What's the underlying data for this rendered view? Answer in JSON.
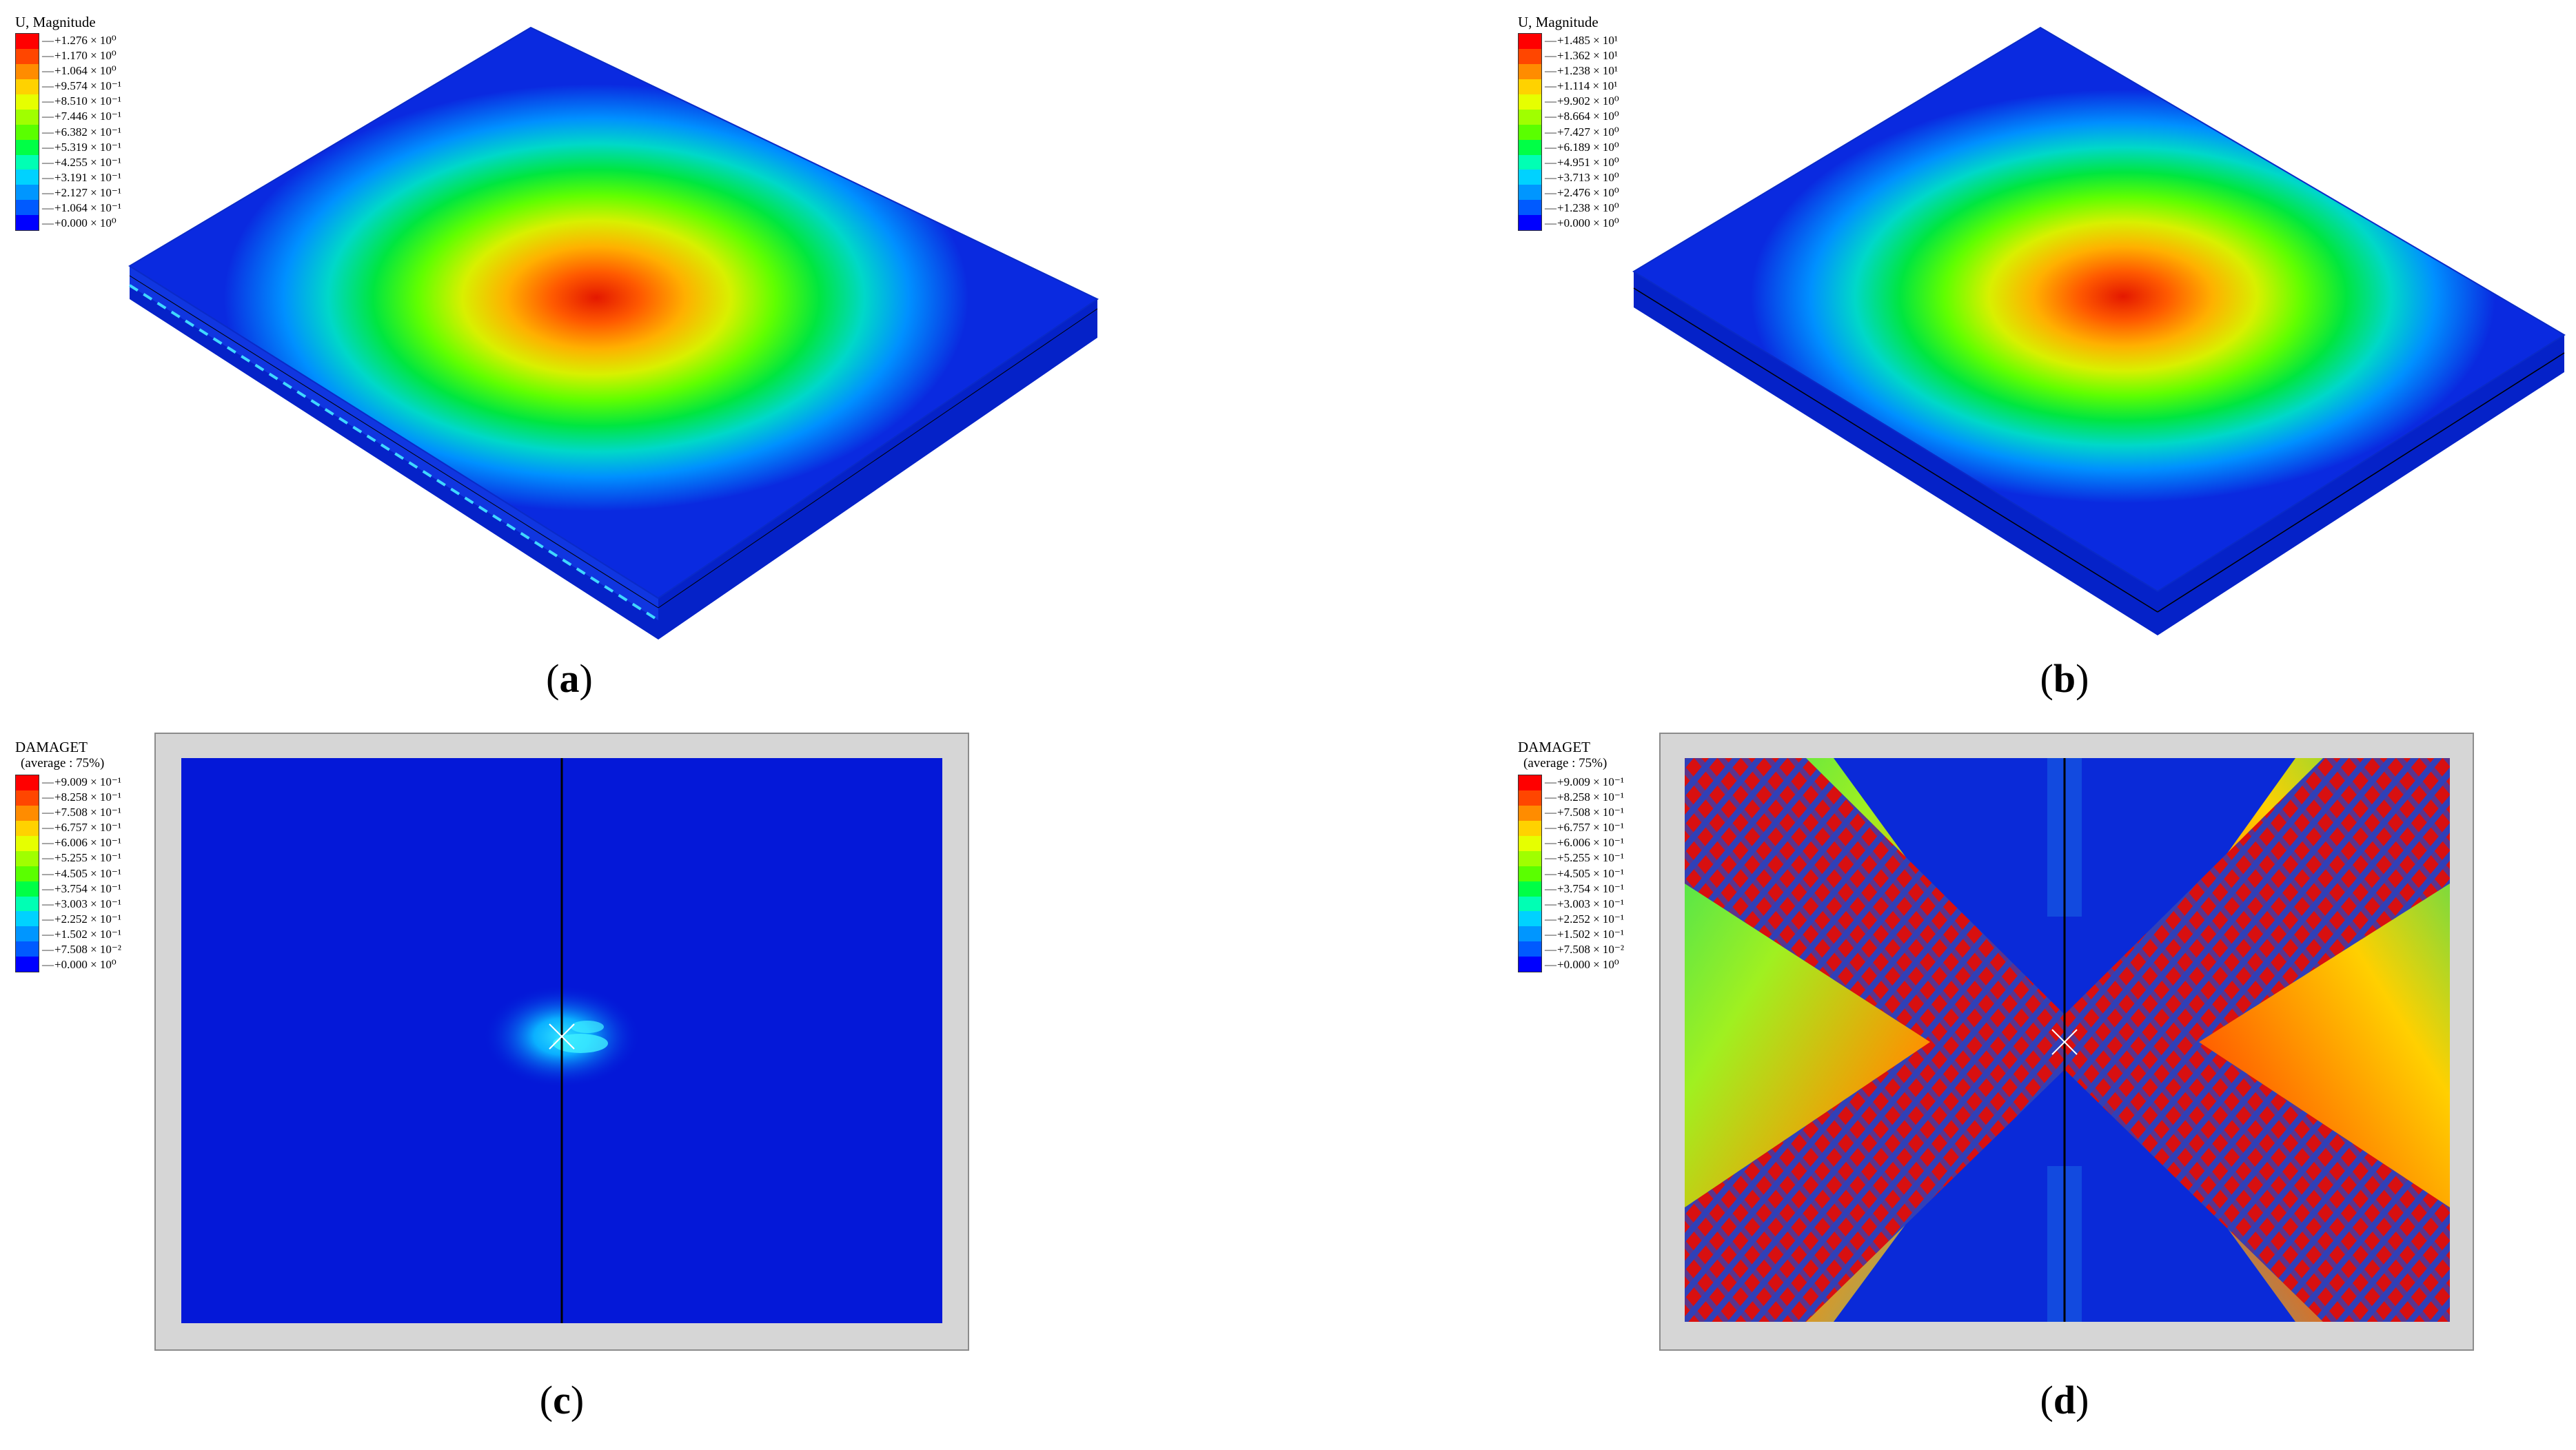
{
  "panels": [
    {
      "id": "a",
      "caption_letter": "a",
      "legend_title": "U, Magnitude",
      "legend_subtitle": "",
      "legend_values": [
        "+1.276 × 10⁰",
        "+1.170 × 10⁰",
        "+1.064 × 10⁰",
        "+9.574 × 10⁻¹",
        "+8.510 × 10⁻¹",
        "+7.446 × 10⁻¹",
        "+6.382 × 10⁻¹",
        "+5.319 × 10⁻¹",
        "+4.255 × 10⁻¹",
        "+3.191 × 10⁻¹",
        "+2.127 × 10⁻¹",
        "+1.064 × 10⁻¹",
        "+0.000 × 10⁰"
      ]
    },
    {
      "id": "b",
      "caption_letter": "b",
      "legend_title": "U, Magnitude",
      "legend_subtitle": "",
      "legend_values": [
        "+1.485 × 10¹",
        "+1.362 × 10¹",
        "+1.238 × 10¹",
        "+1.114 × 10¹",
        "+9.902 × 10⁰",
        "+8.664 × 10⁰",
        "+7.427 × 10⁰",
        "+6.189 × 10⁰",
        "+4.951 × 10⁰",
        "+3.713 × 10⁰",
        "+2.476 × 10⁰",
        "+1.238 × 10⁰",
        "+0.000 × 10⁰"
      ]
    },
    {
      "id": "c",
      "caption_letter": "c",
      "legend_title": "DAMAGET",
      "legend_subtitle": "(average : 75%)",
      "legend_values": [
        "+9.009 × 10⁻¹",
        "+8.258 × 10⁻¹",
        "+7.508 × 10⁻¹",
        "+6.757 × 10⁻¹",
        "+6.006 × 10⁻¹",
        "+5.255 × 10⁻¹",
        "+4.505 × 10⁻¹",
        "+3.754 × 10⁻¹",
        "+3.003 × 10⁻¹",
        "+2.252 × 10⁻¹",
        "+1.502 × 10⁻¹",
        "+7.508 × 10⁻²",
        "+0.000 × 10⁰"
      ]
    },
    {
      "id": "d",
      "caption_letter": "d",
      "legend_title": "DAMAGET",
      "legend_subtitle": "(average : 75%)",
      "legend_values": [
        "+9.009 × 10⁻¹",
        "+8.258 × 10⁻¹",
        "+7.508 × 10⁻¹",
        "+6.757 × 10⁻¹",
        "+6.006 × 10⁻¹",
        "+5.255 × 10⁻¹",
        "+4.505 × 10⁻¹",
        "+3.754 × 10⁻¹",
        "+3.003 × 10⁻¹",
        "+2.252 × 10⁻¹",
        "+1.502 × 10⁻¹",
        "+7.508 × 10⁻²",
        "+0.000 × 10⁰"
      ]
    }
  ],
  "colormap": [
    "#ff0000",
    "#ff4600",
    "#ff8c00",
    "#ffd200",
    "#e6ff00",
    "#a0ff00",
    "#5aff00",
    "#00ff46",
    "#00ffb4",
    "#00d2ff",
    "#0096ff",
    "#005aff",
    "#0000ff"
  ]
}
